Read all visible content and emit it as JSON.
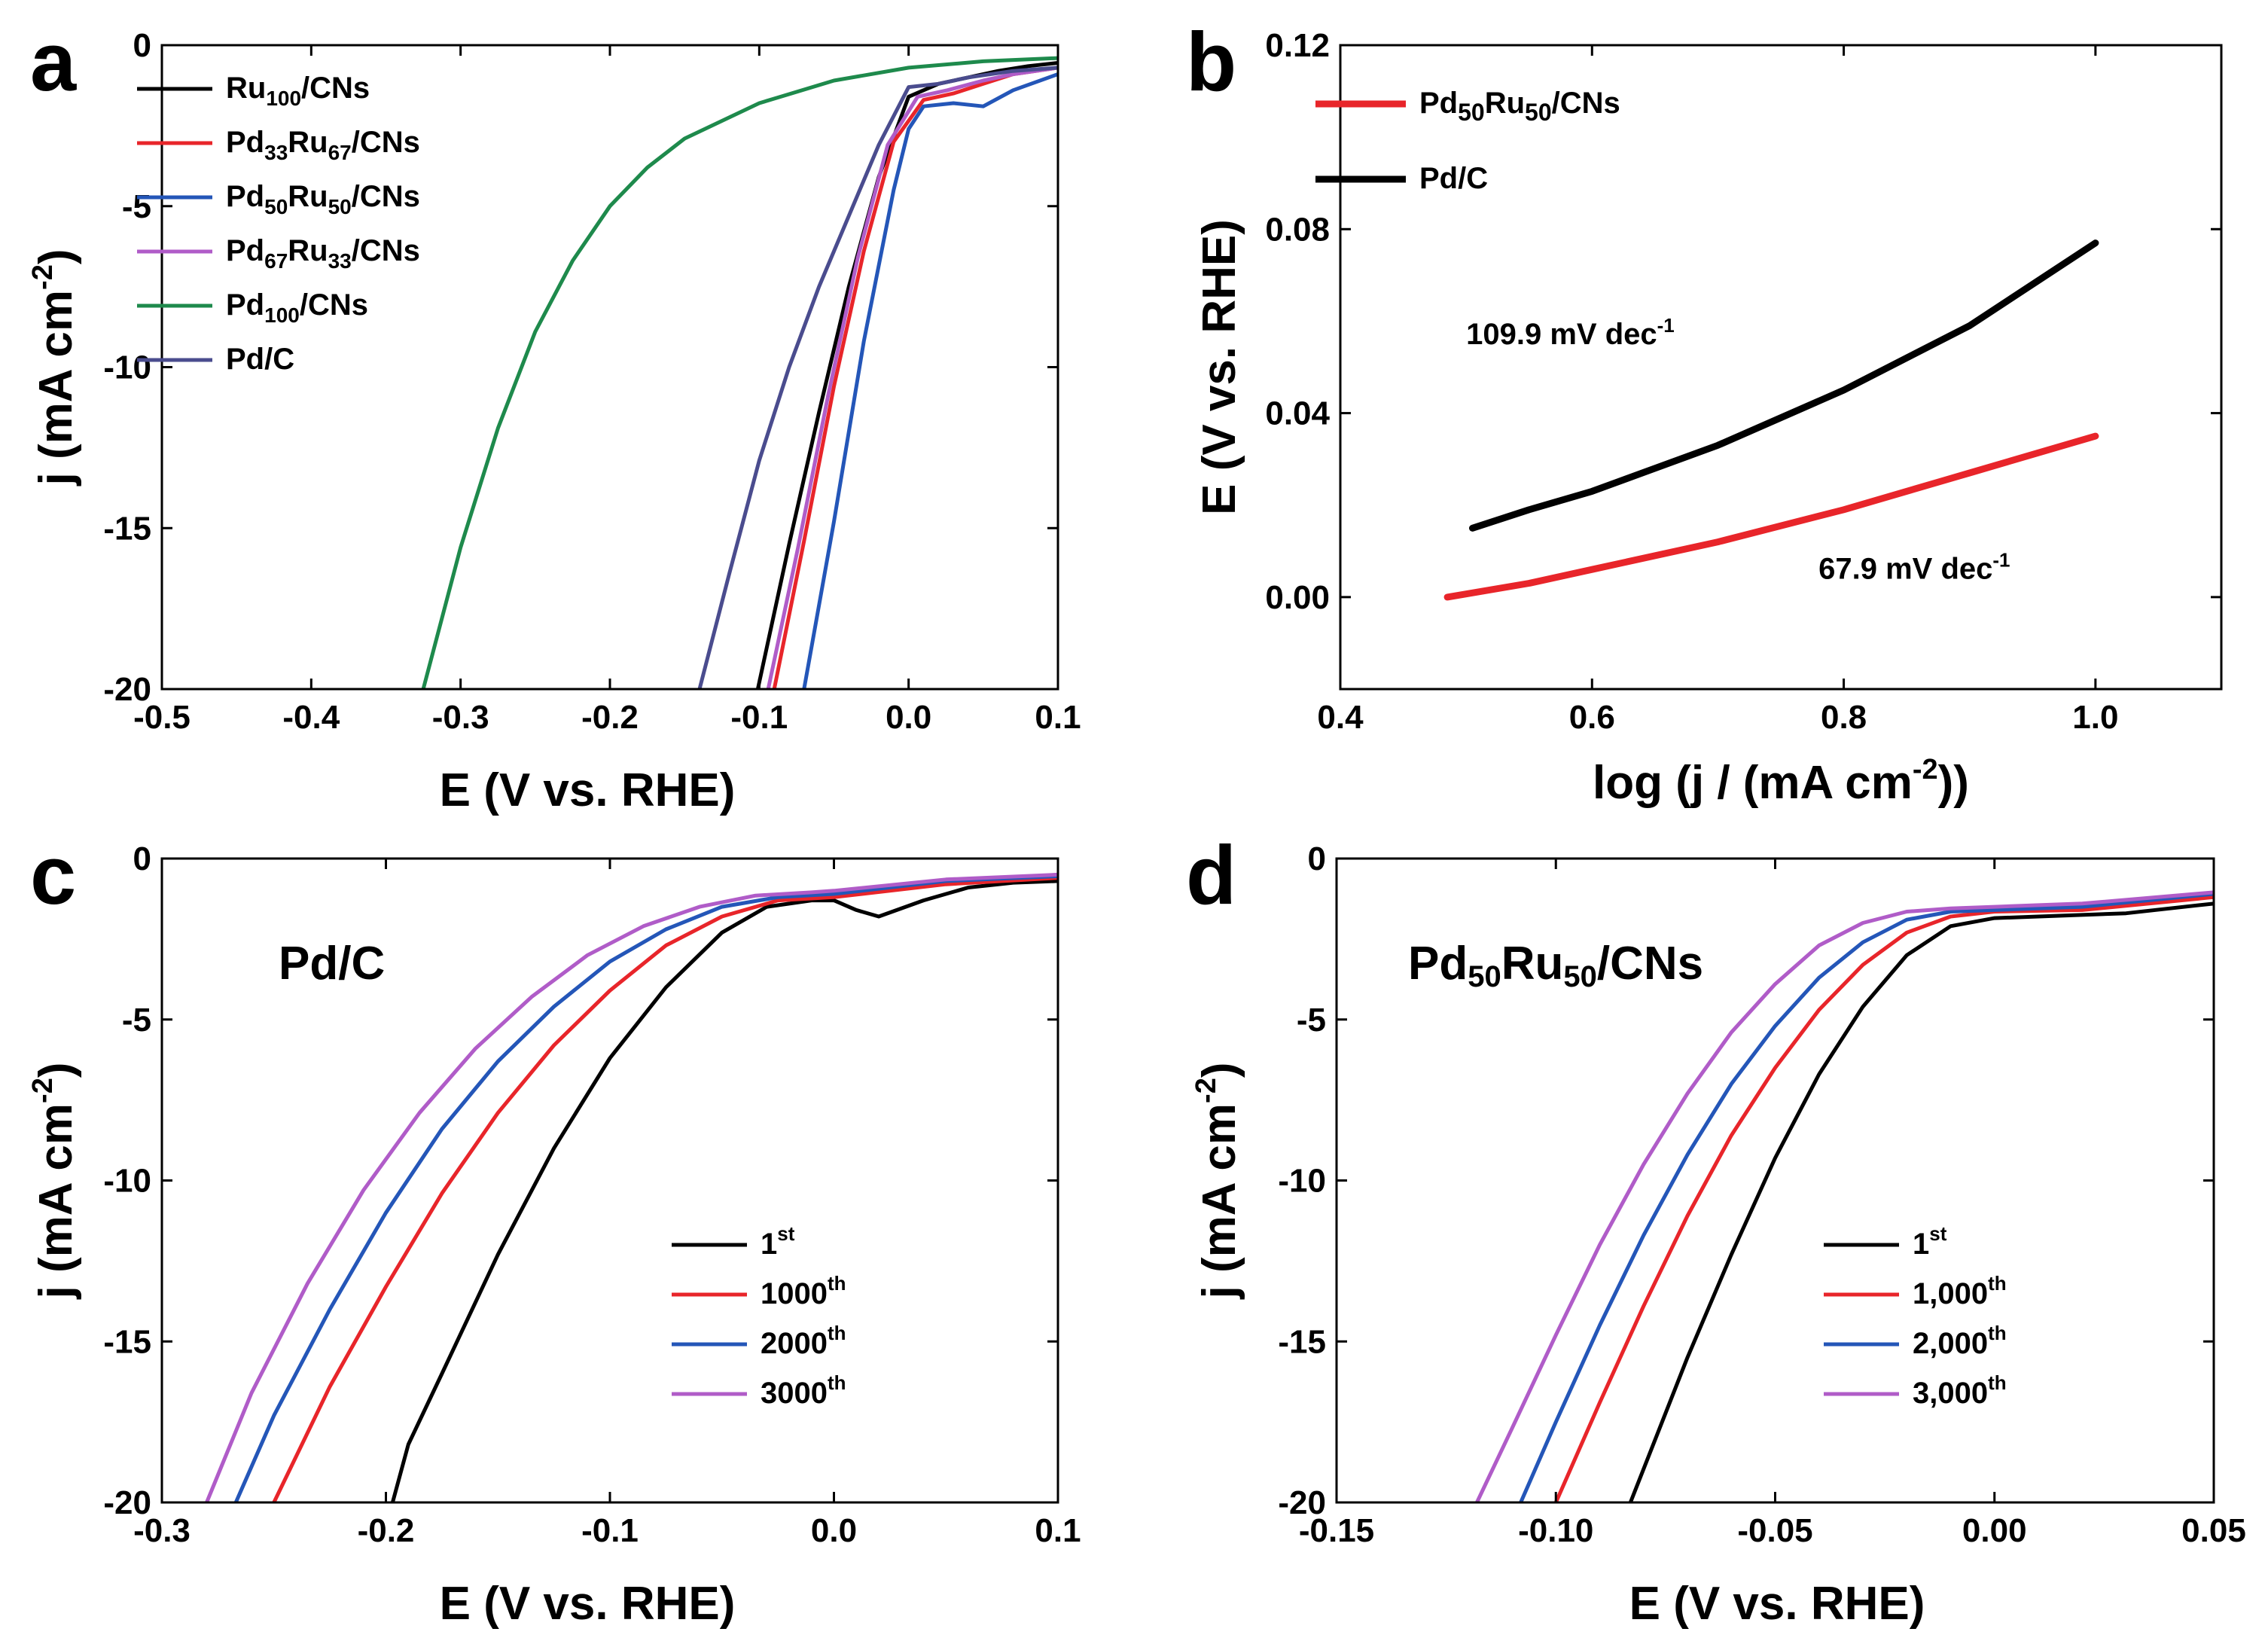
{
  "colors": {
    "black": "#000000",
    "red": "#e8252a",
    "blue": "#2456b8",
    "purple": "#b05cc8",
    "green": "#1e8a4c",
    "navy": "#4a4c8e"
  },
  "chart_data": [
    {
      "id": "a",
      "panel_label": "a",
      "type": "line",
      "xlabel": "E (V vs. RHE)",
      "ylabel": "j (mA cm-2)",
      "ylabel_parts": {
        "base": "j (mA cm",
        "sup": "-2",
        "end": ")"
      },
      "xlim": [
        -0.5,
        0.1
      ],
      "ylim": [
        -20,
        0
      ],
      "xticks": [
        -0.5,
        -0.4,
        -0.3,
        -0.2,
        -0.1,
        0.0,
        0.1
      ],
      "xtick_labels": [
        "-0.5",
        "-0.4",
        "-0.3",
        "-0.2",
        "-0.1",
        "0.0",
        "0.1"
      ],
      "yticks": [
        0,
        -5,
        -10,
        -15,
        -20
      ],
      "ytick_labels": [
        "0",
        "-5",
        "-10",
        "-15",
        "-20"
      ],
      "legend_position": "top-left",
      "series": [
        {
          "name": "Ru100/CNs",
          "label_parts": [
            "Ru",
            "100",
            "/CNs",
            "",
            ""
          ],
          "color": "#000000",
          "x": [
            -0.101,
            -0.08,
            -0.06,
            -0.04,
            -0.02,
            0.0,
            0.02,
            0.04,
            0.06,
            0.08,
            0.1
          ],
          "y": [
            -20,
            -15.5,
            -11.4,
            -7.5,
            -4.1,
            -1.6,
            -1.2,
            -1.0,
            -0.8,
            -0.65,
            -0.55
          ]
        },
        {
          "name": "Pd33Ru67/CNs",
          "label_parts": [
            "Pd",
            "33",
            "Ru",
            "67",
            "/CNs"
          ],
          "color": "#e8252a",
          "x": [
            -0.09,
            -0.07,
            -0.05,
            -0.03,
            -0.01,
            0.01,
            0.03,
            0.05,
            0.07,
            0.1
          ],
          "y": [
            -20,
            -15.4,
            -10.6,
            -6.4,
            -3.0,
            -1.7,
            -1.5,
            -1.2,
            -0.9,
            -0.7
          ]
        },
        {
          "name": "Pd50Ru50/CNs",
          "label_parts": [
            "Pd",
            "50",
            "Ru",
            "50",
            "/CNs"
          ],
          "color": "#2456b8",
          "x": [
            -0.07,
            -0.05,
            -0.03,
            -0.01,
            0.0,
            0.01,
            0.03,
            0.05,
            0.07,
            0.1
          ],
          "y": [
            -20,
            -14.8,
            -9.2,
            -4.5,
            -2.6,
            -1.9,
            -1.8,
            -1.9,
            -1.4,
            -0.9
          ]
        },
        {
          "name": "Pd67Ru33/CNs",
          "label_parts": [
            "Pd",
            "67",
            "Ru",
            "33",
            "/CNs"
          ],
          "color": "#b05cc8",
          "x": [
            -0.094,
            -0.074,
            -0.054,
            -0.034,
            -0.014,
            0.006,
            0.026,
            0.05,
            0.07,
            0.1
          ],
          "y": [
            -20,
            -15.6,
            -10.9,
            -6.6,
            -3.1,
            -1.6,
            -1.4,
            -1.1,
            -0.9,
            -0.7
          ]
        },
        {
          "name": "Pd100/CNs",
          "label_parts": [
            "Pd",
            "100",
            "/CNs",
            "",
            ""
          ],
          "color": "#1e8a4c",
          "x": [
            -0.325,
            -0.3,
            -0.275,
            -0.25,
            -0.225,
            -0.2,
            -0.175,
            -0.15,
            -0.1,
            -0.05,
            0.0,
            0.05,
            0.1
          ],
          "y": [
            -20,
            -15.6,
            -11.9,
            -8.9,
            -6.7,
            -5.0,
            -3.8,
            -2.9,
            -1.8,
            -1.1,
            -0.7,
            -0.5,
            -0.4
          ]
        },
        {
          "name": "Pd/C",
          "label_parts": [
            "Pd/C",
            "",
            "",
            "",
            ""
          ],
          "color": "#4a4c8e",
          "x": [
            -0.14,
            -0.12,
            -0.1,
            -0.08,
            -0.06,
            -0.04,
            -0.02,
            0.0,
            0.02,
            0.04,
            0.07,
            0.1
          ],
          "y": [
            -20,
            -16.4,
            -12.9,
            -10.0,
            -7.5,
            -5.3,
            -3.1,
            -1.3,
            -1.2,
            -1.0,
            -0.8,
            -0.7
          ]
        }
      ]
    },
    {
      "id": "b",
      "panel_label": "b",
      "type": "line",
      "xlabel": "log (j / (mA cm-2))",
      "xlabel_parts": {
        "base": "log (j / (mA cm",
        "sup": "-2",
        "end": "))"
      },
      "ylabel": "E (V vs. RHE)",
      "xlim": [
        0.4,
        1.1
      ],
      "ylim": [
        -0.02,
        0.12
      ],
      "xticks": [
        0.4,
        0.6,
        0.8,
        1.0
      ],
      "xtick_labels": [
        "0.4",
        "0.6",
        "0.8",
        "1.0"
      ],
      "yticks": [
        0.0,
        0.04,
        0.08,
        0.12
      ],
      "ytick_labels": [
        "0.00",
        "0.04",
        "0.08",
        "0.12"
      ],
      "legend_position": "top-left",
      "annotations": [
        {
          "text": "109.9 mV dec",
          "sup": "-1",
          "x": 0.5,
          "y": 0.055
        },
        {
          "text": "67.9 mV dec",
          "sup": "-1",
          "x": 0.78,
          "y": 0.004
        }
      ],
      "series": [
        {
          "name": "Pd50Ru50/CNs",
          "label_parts": [
            "Pd",
            "50",
            "Ru",
            "50",
            "/CNs"
          ],
          "color": "#e8252a",
          "x": [
            0.485,
            0.55,
            0.6,
            0.7,
            0.8,
            0.9,
            1.0
          ],
          "y": [
            0.0,
            0.003,
            0.006,
            0.012,
            0.019,
            0.027,
            0.035
          ]
        },
        {
          "name": "Pd/C",
          "label_parts": [
            "Pd/C",
            "",
            "",
            "",
            ""
          ],
          "color": "#000000",
          "x": [
            0.505,
            0.55,
            0.6,
            0.7,
            0.8,
            0.9,
            1.0
          ],
          "y": [
            0.015,
            0.019,
            0.023,
            0.033,
            0.045,
            0.059,
            0.077
          ]
        }
      ]
    },
    {
      "id": "c",
      "panel_label": "c",
      "type": "line",
      "xlabel": "E (V vs. RHE)",
      "ylabel": "j (mA cm-2)",
      "ylabel_parts": {
        "base": "j (mA cm",
        "sup": "-2",
        "end": ")"
      },
      "title_in_plot": "Pd/C",
      "xlim": [
        -0.3,
        0.1
      ],
      "ylim": [
        -20,
        0
      ],
      "xticks": [
        -0.3,
        -0.2,
        -0.1,
        0.0,
        0.1
      ],
      "xtick_labels": [
        "-0.3",
        "-0.2",
        "-0.1",
        "0.0",
        "0.1"
      ],
      "yticks": [
        0,
        -5,
        -10,
        -15,
        -20
      ],
      "ytick_labels": [
        "0",
        "-5",
        "-10",
        "-15",
        "-20"
      ],
      "legend_position": "lower-right",
      "series": [
        {
          "name": "1st",
          "label_parts": [
            "1",
            "st"
          ],
          "color": "#000000",
          "x": [
            -0.197,
            -0.19,
            -0.175,
            -0.15,
            -0.125,
            -0.1,
            -0.075,
            -0.05,
            -0.03,
            -0.01,
            0.0,
            0.01,
            0.02,
            0.04,
            0.06,
            0.08,
            0.1
          ],
          "y": [
            -20,
            -18.2,
            -16.0,
            -12.3,
            -9.0,
            -6.2,
            -4.0,
            -2.3,
            -1.5,
            -1.3,
            -1.3,
            -1.6,
            -1.8,
            -1.3,
            -0.9,
            -0.75,
            -0.7
          ]
        },
        {
          "name": "1000th",
          "label_parts": [
            "1000",
            "th"
          ],
          "color": "#e8252a",
          "x": [
            -0.25,
            -0.225,
            -0.2,
            -0.175,
            -0.15,
            -0.125,
            -0.1,
            -0.075,
            -0.05,
            -0.025,
            0.0,
            0.05,
            0.1
          ],
          "y": [
            -20,
            -16.4,
            -13.3,
            -10.4,
            -7.9,
            -5.8,
            -4.1,
            -2.7,
            -1.8,
            -1.3,
            -1.2,
            -0.8,
            -0.6
          ]
        },
        {
          "name": "2000th",
          "label_parts": [
            "2000",
            "th"
          ],
          "color": "#2456b8",
          "x": [
            -0.267,
            -0.25,
            -0.225,
            -0.2,
            -0.175,
            -0.15,
            -0.125,
            -0.1,
            -0.075,
            -0.05,
            -0.025,
            0.0,
            0.05,
            0.1
          ],
          "y": [
            -20,
            -17.3,
            -14.0,
            -11.0,
            -8.4,
            -6.3,
            -4.6,
            -3.2,
            -2.2,
            -1.5,
            -1.2,
            -1.1,
            -0.7,
            -0.55
          ]
        },
        {
          "name": "3000th",
          "label_parts": [
            "3000",
            "th"
          ],
          "color": "#b05cc8",
          "x": [
            -0.28,
            -0.26,
            -0.235,
            -0.21,
            -0.185,
            -0.16,
            -0.135,
            -0.11,
            -0.085,
            -0.06,
            -0.035,
            -0.01,
            0.0,
            0.05,
            0.1
          ],
          "y": [
            -20,
            -16.6,
            -13.2,
            -10.3,
            -7.9,
            -5.9,
            -4.3,
            -3.0,
            -2.1,
            -1.5,
            -1.15,
            -1.05,
            -1.0,
            -0.65,
            -0.5
          ]
        }
      ]
    },
    {
      "id": "d",
      "panel_label": "d",
      "type": "line",
      "xlabel": "E (V vs. RHE)",
      "ylabel": "j (mA cm-2)",
      "ylabel_parts": {
        "base": "j (mA cm",
        "sup": "-2",
        "end": ")"
      },
      "title_in_plot": "Pd50Ru50/CNs",
      "title_parts": [
        "Pd",
        "50",
        "Ru",
        "50",
        "/CNs"
      ],
      "xlim": [
        -0.15,
        0.05
      ],
      "ylim": [
        -20,
        0
      ],
      "xticks": [
        -0.15,
        -0.1,
        -0.05,
        0.0,
        0.05
      ],
      "xtick_labels": [
        "-0.15",
        "-0.10",
        "-0.05",
        "0.00",
        "0.05"
      ],
      "yticks": [
        0,
        -5,
        -10,
        -15,
        -20
      ],
      "ytick_labels": [
        "0",
        "-5",
        "-10",
        "-15",
        "-20"
      ],
      "legend_position": "lower-right",
      "series": [
        {
          "name": "1st",
          "label_parts": [
            "1",
            "st"
          ],
          "color": "#000000",
          "x": [
            -0.083,
            -0.07,
            -0.06,
            -0.05,
            -0.04,
            -0.03,
            -0.02,
            -0.01,
            0.0,
            0.01,
            0.03,
            0.05
          ],
          "y": [
            -20,
            -15.5,
            -12.3,
            -9.3,
            -6.7,
            -4.6,
            -3.0,
            -2.1,
            -1.85,
            -1.8,
            -1.7,
            -1.4
          ]
        },
        {
          "name": "1,000th",
          "label_parts": [
            "1,000",
            "th"
          ],
          "color": "#e8252a",
          "x": [
            -0.1,
            -0.09,
            -0.08,
            -0.07,
            -0.06,
            -0.05,
            -0.04,
            -0.03,
            -0.02,
            -0.01,
            0.0,
            0.02,
            0.05
          ],
          "y": [
            -20,
            -16.9,
            -13.9,
            -11.1,
            -8.6,
            -6.5,
            -4.7,
            -3.3,
            -2.3,
            -1.8,
            -1.65,
            -1.6,
            -1.2
          ]
        },
        {
          "name": "2,000th",
          "label_parts": [
            "2,000",
            "th"
          ],
          "color": "#2456b8",
          "x": [
            -0.108,
            -0.1,
            -0.09,
            -0.08,
            -0.07,
            -0.06,
            -0.05,
            -0.04,
            -0.03,
            -0.02,
            -0.01,
            0.0,
            0.02,
            0.05
          ],
          "y": [
            -20,
            -17.5,
            -14.5,
            -11.7,
            -9.2,
            -7.0,
            -5.2,
            -3.7,
            -2.6,
            -1.9,
            -1.65,
            -1.6,
            -1.5,
            -1.1
          ]
        },
        {
          "name": "3,000th",
          "label_parts": [
            "3,000",
            "th"
          ],
          "color": "#b05cc8",
          "x": [
            -0.118,
            -0.11,
            -0.1,
            -0.09,
            -0.08,
            -0.07,
            -0.06,
            -0.05,
            -0.04,
            -0.03,
            -0.02,
            -0.01,
            0.0,
            0.02,
            0.05
          ],
          "y": [
            -20,
            -17.7,
            -14.8,
            -12.0,
            -9.5,
            -7.3,
            -5.4,
            -3.9,
            -2.7,
            -2.0,
            -1.65,
            -1.55,
            -1.5,
            -1.4,
            -1.05
          ]
        }
      ]
    }
  ]
}
